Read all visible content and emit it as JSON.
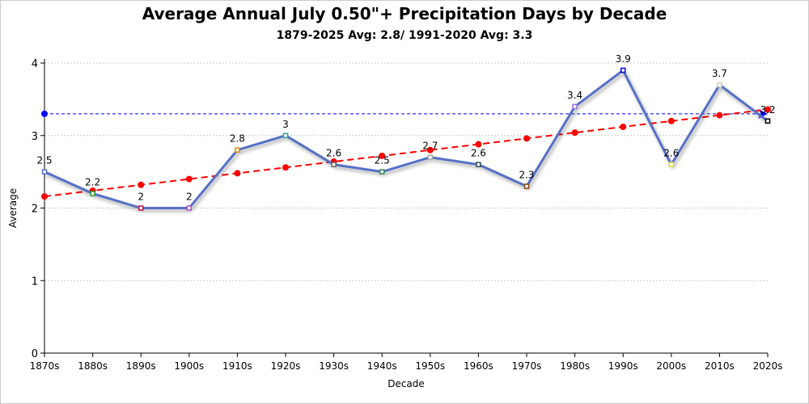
{
  "chart_data": {
    "type": "line",
    "title": "Average Annual July 0.50\"+ Precipitation Days by Decade",
    "subtitle": "1879-2025 Avg: 2.8/ 1991-2020 Avg: 3.3",
    "xlabel": "Decade",
    "ylabel": "Average",
    "ylim": [
      0,
      4
    ],
    "yticks": [
      0,
      1,
      2,
      3,
      4
    ],
    "grid": true,
    "categories": [
      "1870s",
      "1880s",
      "1890s",
      "1900s",
      "1910s",
      "1920s",
      "1930s",
      "1940s",
      "1950s",
      "1960s",
      "1970s",
      "1980s",
      "1990s",
      "2000s",
      "2010s",
      "2020s"
    ],
    "series": [
      {
        "values": [
          2.5,
          2.2,
          2,
          2,
          2.8,
          3,
          2.6,
          2.5,
          2.7,
          2.6,
          2.3,
          3.4,
          3.9,
          2.6,
          3.7,
          3.2
        ],
        "color": "#5470c6",
        "marker_colors": [
          "#5470c6",
          "#2e9e2e",
          "#c0143c",
          "#b04bc8",
          "#e08a00",
          "#2aa59a",
          "#666666",
          "#2e8b57",
          "#aaaaaa",
          "#2f4f4f",
          "#8b4513",
          "#9370db",
          "#0000cc",
          "#dddd33",
          "#cccccc",
          "#000000"
        ]
      },
      {
        "values": [
          2.16,
          2.24,
          2.32,
          2.4,
          2.48,
          2.56,
          2.64,
          2.72,
          2.8,
          2.88,
          2.96,
          3.04,
          3.12,
          3.2,
          3.28,
          3.36
        ],
        "color": "#ff0000",
        "style": "dashed"
      }
    ],
    "reference_line": {
      "value": 3.3,
      "color": "#0000ff",
      "style": "dashed"
    }
  }
}
